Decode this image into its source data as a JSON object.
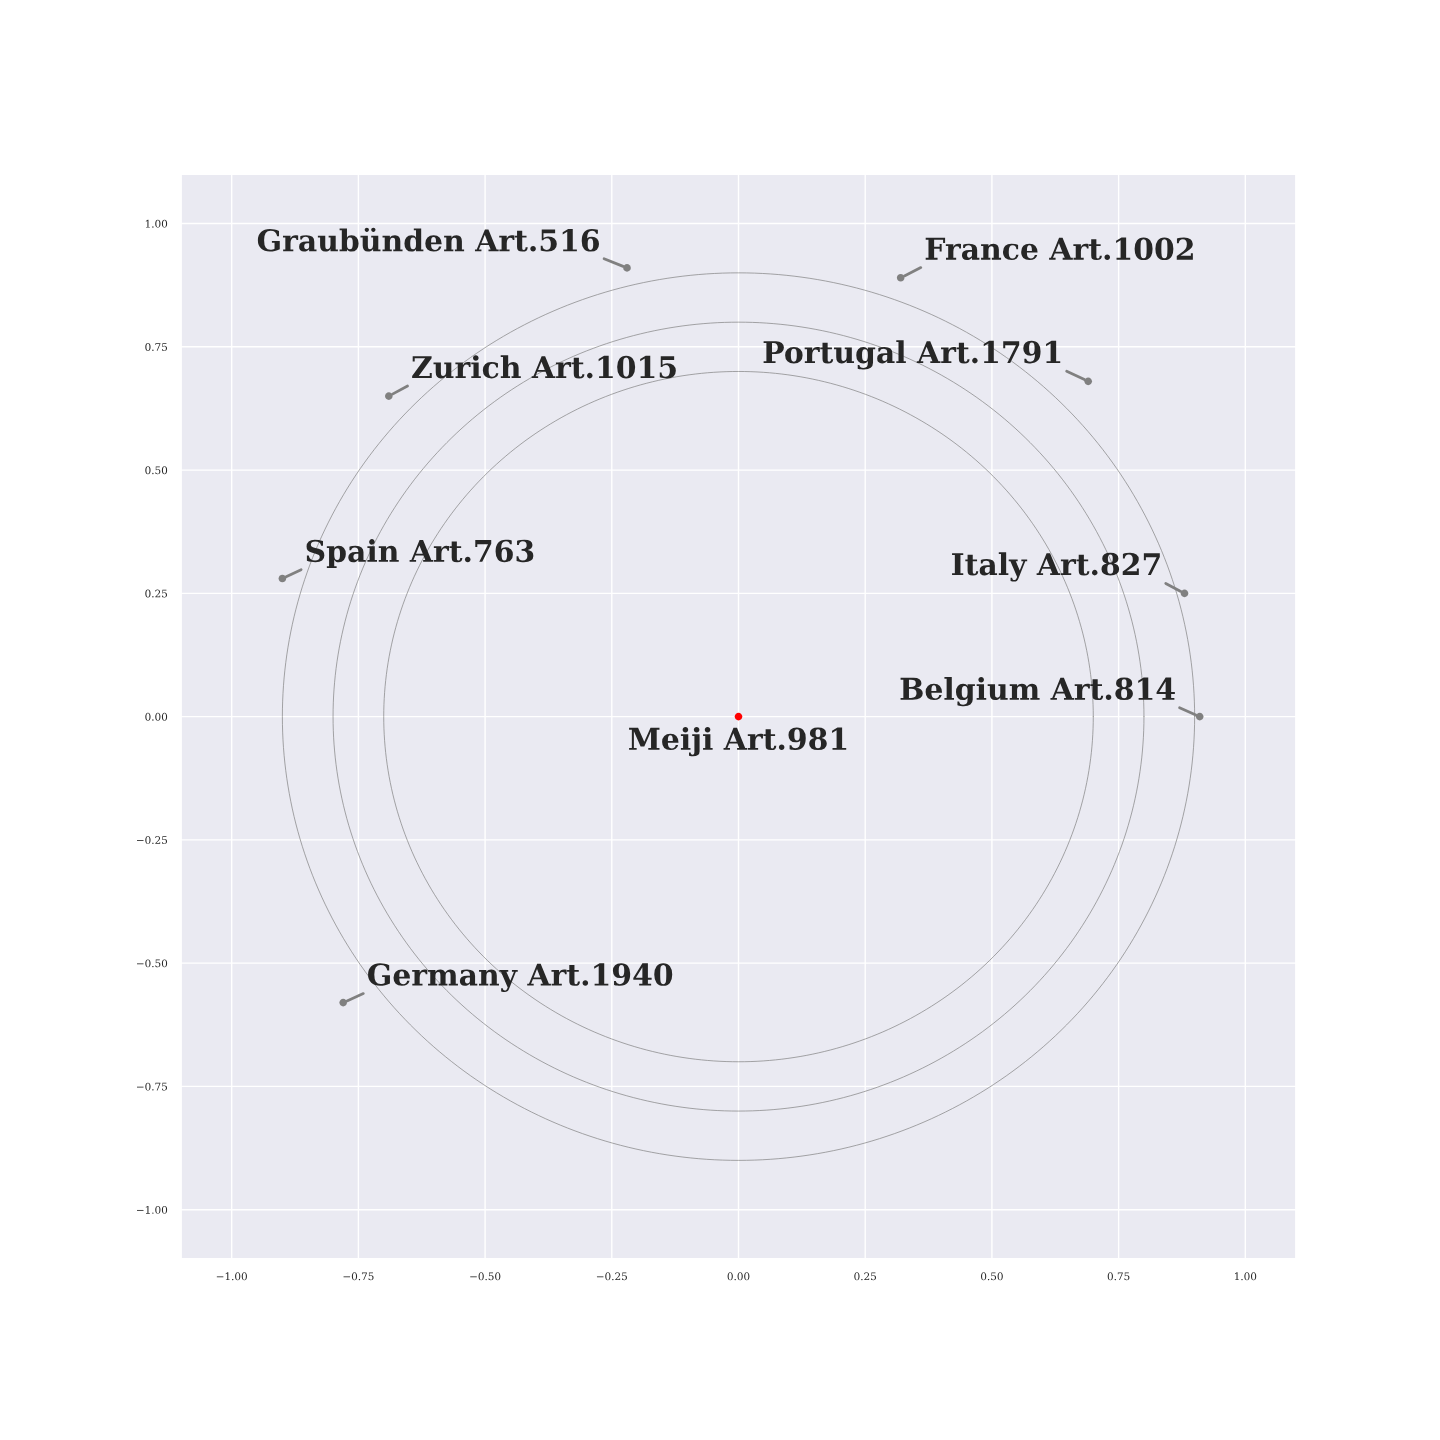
{
  "chart_data": {
    "type": "scatter",
    "xlim": [
      -1.1,
      1.1
    ],
    "ylim": [
      -1.1,
      1.1
    ],
    "xticks": [
      {
        "value": -1,
        "label": "−1.00"
      },
      {
        "value": -0.75,
        "label": "−0.75"
      },
      {
        "value": -0.5,
        "label": "−0.50"
      },
      {
        "value": -0.25,
        "label": "−0.25"
      },
      {
        "value": 0,
        "label": "0.00"
      },
      {
        "value": 0.25,
        "label": "0.25"
      },
      {
        "value": 0.5,
        "label": "0.50"
      },
      {
        "value": 0.75,
        "label": "0.75"
      },
      {
        "value": 1,
        "label": "1.00"
      }
    ],
    "yticks": [
      {
        "value": -1,
        "label": "−1.00"
      },
      {
        "value": -0.75,
        "label": "−0.75"
      },
      {
        "value": -0.5,
        "label": "−0.50"
      },
      {
        "value": -0.25,
        "label": "−0.25"
      },
      {
        "value": 0,
        "label": "0.00"
      },
      {
        "value": 0.25,
        "label": "0.25"
      },
      {
        "value": 0.5,
        "label": "0.50"
      },
      {
        "value": 0.75,
        "label": "0.75"
      },
      {
        "value": 1,
        "label": "1.00"
      }
    ],
    "grid": true,
    "series": [
      {
        "marker": "circle",
        "x": [
          -0.22,
          0.32,
          -0.69,
          0.69,
          -0.9,
          0.88,
          0.91,
          -0.78,
          0
        ],
        "values": [
          0.91,
          0.89,
          0.65,
          0.68,
          0.28,
          0.25,
          0,
          -0.58,
          0
        ],
        "colors": [
          "#808080",
          "#808080",
          "#808080",
          "#808080",
          "#808080",
          "#808080",
          "#808080",
          "#808080",
          "#ff0000"
        ]
      }
    ],
    "annotations": [
      {
        "text": "Graubünden Art.516",
        "x": -0.22,
        "y": 0.91
      },
      {
        "text": "France Art.1002",
        "x": 0.32,
        "y": 0.89
      },
      {
        "text": "Zurich Art.1015",
        "x": -0.69,
        "y": 0.65
      },
      {
        "text": "Portugal Art.1791",
        "x": 0.69,
        "y": 0.68
      },
      {
        "text": "Spain Art.763",
        "x": -0.9,
        "y": 0.28
      },
      {
        "text": "Italy Art.827",
        "x": 0.88,
        "y": 0.25
      },
      {
        "text": "Belgium Art.814",
        "x": 0.91,
        "y": 0
      },
      {
        "text": "Germany Art.1940",
        "x": -0.78,
        "y": -0.58
      },
      {
        "text": "Meiji Art.981",
        "x": 0,
        "y": 0
      }
    ]
  }
}
